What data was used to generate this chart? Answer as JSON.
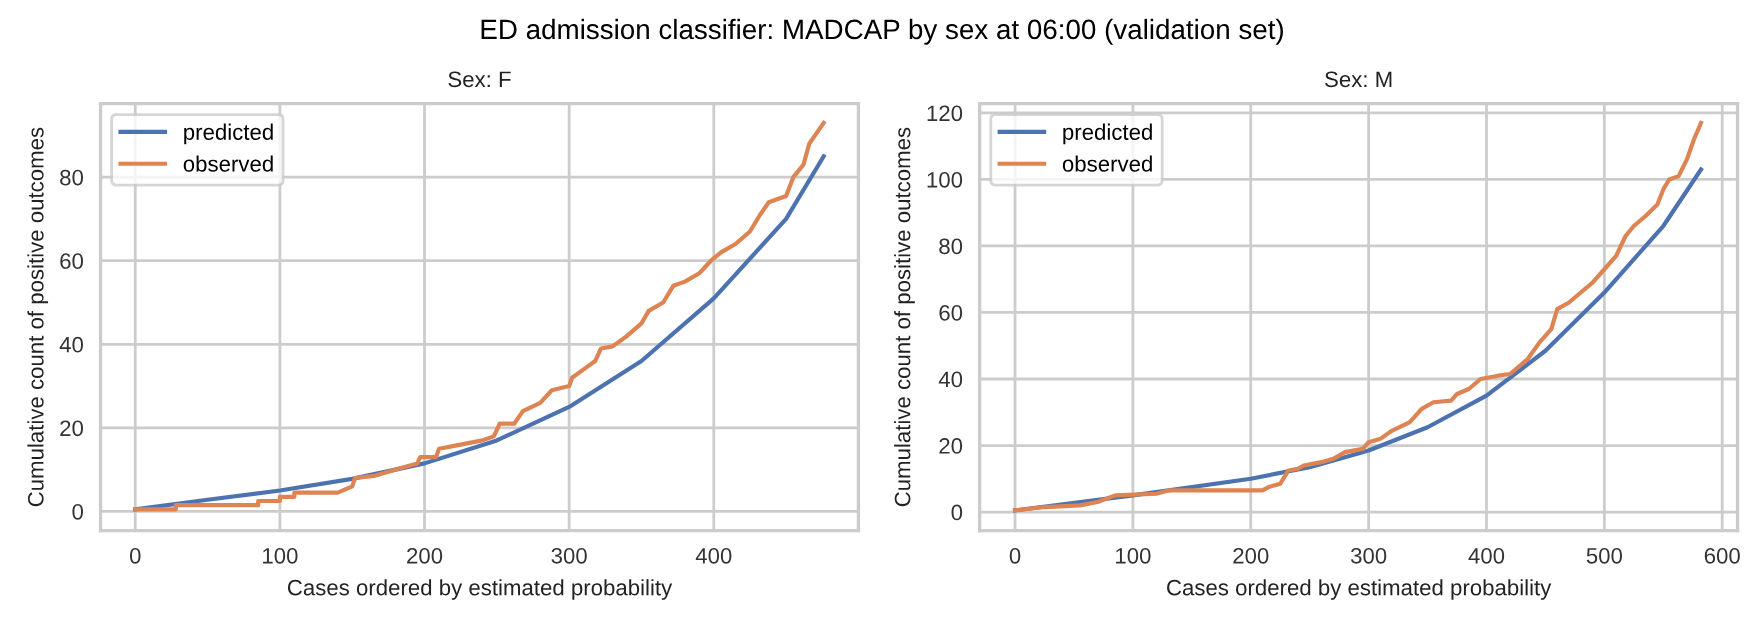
{
  "chart_data": [
    {
      "type": "line",
      "title": "Sex: F",
      "xlabel": "Cases ordered by estimated probability",
      "ylabel": "Cumulative count of positive outcomes",
      "annotations": [
        "ED admission classifier: MADCAP by sex at 06:00 (validation set)"
      ],
      "xlim": [
        -24,
        500
      ],
      "ylim": [
        -4.6,
        97.6
      ],
      "xticks": [
        0,
        100,
        200,
        300,
        400
      ],
      "yticks": [
        0,
        20,
        40,
        60,
        80
      ],
      "grid": true,
      "legend": "top left",
      "series": [
        {
          "name": "predicted",
          "color": "#4c72b0",
          "x": [
            0,
            50,
            100,
            150,
            200,
            250,
            300,
            350,
            400,
            450,
            476
          ],
          "values": [
            0.5,
            2.8,
            5,
            7.8,
            11.5,
            17,
            25,
            36,
            51,
            70,
            85
          ]
        },
        {
          "name": "observed",
          "color": "#dd8452",
          "x": [
            0,
            28,
            28,
            85,
            85,
            100,
            100,
            110,
            110,
            140,
            150,
            152,
            165,
            175,
            185,
            195,
            197,
            208,
            210,
            225,
            240,
            248,
            252,
            262,
            268,
            280,
            288,
            300,
            302,
            310,
            318,
            322,
            330,
            340,
            350,
            355,
            365,
            372,
            380,
            390,
            398,
            405,
            415,
            425,
            432,
            438,
            450,
            455,
            462,
            466,
            470,
            476
          ],
          "values": [
            0.5,
            0.5,
            1.5,
            1.5,
            2.5,
            2.5,
            3.5,
            3.5,
            4.5,
            4.5,
            6,
            8,
            8.5,
            9.5,
            10.5,
            11.5,
            13,
            13,
            15,
            16,
            17,
            18,
            21,
            21,
            24,
            26,
            29,
            30,
            32,
            34,
            36,
            39,
            39.5,
            42,
            45,
            48,
            50,
            54,
            55,
            57,
            60,
            62,
            64,
            67,
            71,
            74,
            75.5,
            80,
            83,
            88,
            90,
            93
          ]
        }
      ]
    },
    {
      "type": "line",
      "title": "Sex: M",
      "xlabel": "Cases ordered by estimated probability",
      "ylabel": "Cumulative count of positive outcomes",
      "xlim": [
        -30,
        613
      ],
      "ylim": [
        -5.6,
        122.8
      ],
      "xticks": [
        0,
        100,
        200,
        300,
        400,
        500,
        600
      ],
      "yticks": [
        0,
        20,
        40,
        60,
        80,
        100,
        120
      ],
      "grid": true,
      "legend": "top left",
      "series": [
        {
          "name": "predicted",
          "color": "#4c72b0",
          "x": [
            0,
            100,
            200,
            250,
            300,
            350,
            400,
            450,
            500,
            550,
            582
          ],
          "values": [
            0.5,
            5,
            10,
            13.5,
            18.5,
            25.5,
            35,
            48.5,
            66,
            86,
            103
          ]
        },
        {
          "name": "observed",
          "color": "#dd8452",
          "x": [
            0,
            25,
            55,
            70,
            85,
            120,
            130,
            210,
            215,
            225,
            232,
            240,
            245,
            260,
            270,
            280,
            295,
            300,
            310,
            320,
            335,
            345,
            355,
            370,
            375,
            385,
            395,
            410,
            420,
            425,
            435,
            445,
            455,
            460,
            470,
            480,
            490,
            500,
            510,
            518,
            525,
            535,
            545,
            550,
            555,
            563,
            570,
            576,
            582
          ],
          "values": [
            0.5,
            1.5,
            2,
            3,
            5,
            5.5,
            6.5,
            6.5,
            7.5,
            8.5,
            12.5,
            13,
            14,
            15,
            16,
            18,
            19,
            21,
            22,
            24.5,
            27,
            31,
            33,
            33.5,
            35.5,
            37,
            40,
            41,
            41.5,
            43,
            46,
            51,
            55,
            61,
            63,
            66,
            69,
            73,
            77,
            83,
            86,
            89,
            92.5,
            97,
            100,
            101,
            106,
            112,
            117
          ]
        }
      ]
    }
  ]
}
